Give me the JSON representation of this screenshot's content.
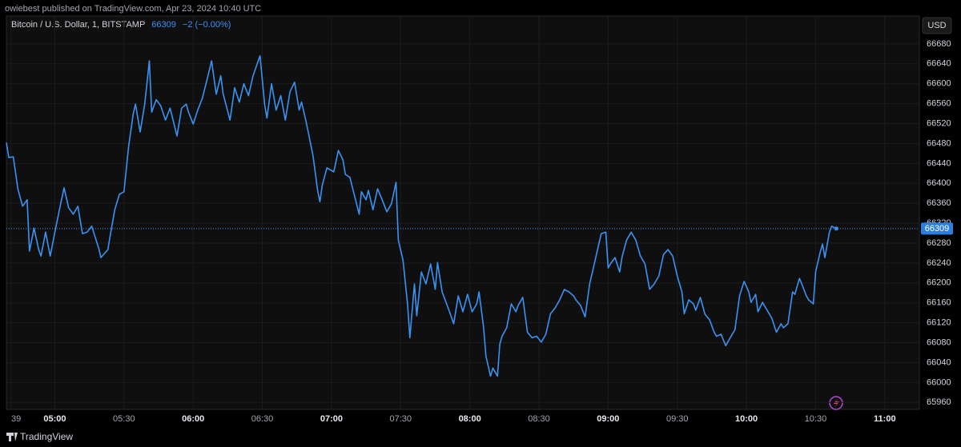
{
  "header": "owiebest published on TradingView.com, Apr 23, 2024 10:40 UTC",
  "footer_brand": "TradingView",
  "currency": "USD",
  "chart_data": {
    "type": "line",
    "title": "Bitcoin / U.S. Dollar, 1, BITSTAMP",
    "last_price": 66309,
    "change": "−2 (−0.00%)",
    "color": "#3a93f3",
    "grid": true,
    "x": [
      279,
      280,
      282,
      284,
      286,
      288,
      289,
      291,
      293,
      294,
      296,
      298,
      300,
      302,
      304,
      306,
      308,
      310,
      312,
      314,
      316,
      319,
      320,
      323,
      324,
      326,
      328,
      330,
      332,
      334,
      335,
      337,
      339,
      341,
      342,
      344,
      346,
      348,
      350,
      353,
      355,
      357,
      358,
      360,
      362,
      364,
      366,
      368,
      370,
      372,
      373,
      376,
      378,
      380,
      382,
      384,
      386,
      388,
      389,
      391,
      392,
      394,
      396,
      398,
      400,
      402,
      404,
      406,
      407,
      409,
      412,
      414,
      415,
      416,
      418,
      421,
      423,
      425,
      426,
      428,
      430,
      432,
      433,
      435,
      436,
      438,
      440,
      442,
      444,
      446,
      448,
      449,
      451,
      453,
      454,
      456,
      457,
      459,
      461,
      463,
      465,
      466,
      468,
      471,
      473,
      475,
      477,
      479,
      481,
      483,
      484,
      486,
      487,
      489,
      490,
      492,
      493,
      494,
      496,
      498,
      500,
      501,
      503,
      505,
      507,
      509,
      511,
      513,
      515,
      517,
      519,
      521,
      523,
      525,
      526,
      528,
      530,
      532,
      534,
      537,
      539,
      540,
      541,
      543,
      545,
      546,
      548,
      550,
      552,
      554,
      556,
      558,
      560,
      562,
      564,
      566,
      568,
      570,
      572,
      573,
      575,
      577,
      578,
      580,
      582,
      584,
      586,
      587,
      589,
      591,
      593,
      595,
      597,
      599,
      601,
      602,
      604,
      605,
      607,
      609,
      611,
      613,
      615,
      616,
      618,
      620,
      621,
      623,
      624,
      626,
      627,
      629,
      630,
      632,
      633,
      634,
      636,
      637,
      639
    ],
    "values": [
      66482,
      66452,
      66453,
      66388,
      66354,
      66367,
      66264,
      66310,
      66267,
      66254,
      66302,
      66254,
      66302,
      66347,
      66391,
      66351,
      66338,
      66354,
      66299,
      66302,
      66314,
      66270,
      66251,
      66267,
      66294,
      66347,
      66378,
      66383,
      66474,
      66539,
      66559,
      66503,
      66559,
      66646,
      66543,
      66568,
      66555,
      66527,
      66551,
      66495,
      66551,
      66559,
      66543,
      66519,
      66547,
      66571,
      66608,
      66646,
      66579,
      66616,
      66580,
      66527,
      66592,
      66563,
      66600,
      66576,
      66616,
      66643,
      66656,
      66559,
      66531,
      66600,
      66547,
      66576,
      66527,
      66584,
      66603,
      66547,
      66563,
      66524,
      66455,
      66386,
      66363,
      66396,
      66431,
      66423,
      66466,
      66447,
      66418,
      66412,
      66375,
      66338,
      66383,
      66367,
      66386,
      66347,
      66389,
      66367,
      66343,
      66359,
      66402,
      66286,
      66246,
      66158,
      66090,
      66198,
      66134,
      66222,
      66198,
      66238,
      66187,
      66241,
      66182,
      66145,
      66118,
      66174,
      66142,
      66177,
      66142,
      66158,
      66182,
      66110,
      66053,
      66013,
      66029,
      66013,
      66077,
      66093,
      66110,
      66158,
      66142,
      66155,
      66171,
      66101,
      66090,
      66093,
      66081,
      66097,
      66138,
      66150,
      66166,
      66187,
      66182,
      66174,
      66166,
      66155,
      66132,
      66198,
      66238,
      66299,
      66302,
      66230,
      66238,
      66251,
      66222,
      66251,
      66286,
      66302,
      66286,
      66254,
      66238,
      66187,
      66198,
      66214,
      66257,
      66267,
      66254,
      66214,
      66182,
      66138,
      66166,
      66158,
      66145,
      66171,
      66137,
      66126,
      66101,
      66093,
      66097,
      66074,
      66090,
      66106,
      66174,
      66203,
      66182,
      66161,
      66177,
      66142,
      66161,
      66145,
      66129,
      66101,
      66118,
      66110,
      66118,
      66182,
      66177,
      66209,
      66198,
      66174,
      66166,
      66158,
      66222,
      66262,
      66278,
      66251,
      66302,
      66314,
      66309
    ],
    "xlim": [
      279,
      675
    ],
    "xticks": [
      {
        "value": 281,
        "label": "39"
      },
      {
        "value": 300,
        "label": "05:00"
      },
      {
        "value": 330,
        "label": "05:30"
      },
      {
        "value": 360,
        "label": "06:00"
      },
      {
        "value": 390,
        "label": "06:30"
      },
      {
        "value": 420,
        "label": "07:00"
      },
      {
        "value": 450,
        "label": "07:30"
      },
      {
        "value": 480,
        "label": "08:00"
      },
      {
        "value": 510,
        "label": "08:30"
      },
      {
        "value": 540,
        "label": "09:00"
      },
      {
        "value": 570,
        "label": "09:30"
      },
      {
        "value": 600,
        "label": "10:00"
      },
      {
        "value": 630,
        "label": "10:30"
      },
      {
        "value": 660,
        "label": "11:00"
      }
    ],
    "ylim": [
      65946,
      66736
    ],
    "yticks": [
      65960,
      66000,
      66040,
      66080,
      66120,
      66160,
      66200,
      66240,
      66280,
      66320,
      66360,
      66400,
      66440,
      66480,
      66520,
      66560,
      66600,
      66640,
      66680
    ]
  }
}
